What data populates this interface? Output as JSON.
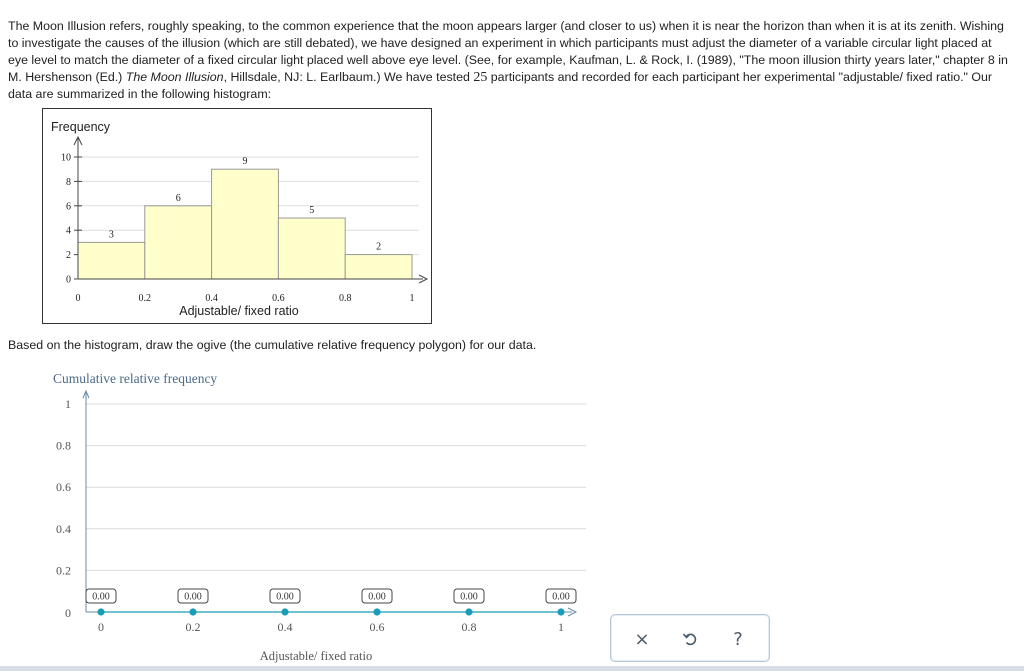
{
  "problem": {
    "part1": "The Moon Illusion refers, roughly speaking, to the common experience that the moon appears larger (and closer to us) when it is near the horizon than when it is at its zenith. Wishing to investigate the causes of the illusion (which are still debated), we have designed an experiment in which participants must adjust the diameter of a variable circular light placed at eye level to match the diameter of a fixed circular light placed well above eye level. (See, for example, Kaufman, L. & Rock, I. (1989), \"The moon illusion thirty years later,\" chapter 8 in M. Hershenson (Ed.) ",
    "book_title": "The Moon Illusion",
    "part2": ", Hillsdale, NJ: L. Earlbaum.) We have tested ",
    "count": "25",
    "part3": " participants and recorded for each participant her experimental \"adjustable/ fixed ratio.\" Our data are summarized in the following histogram:"
  },
  "histogram": {
    "type": "bar",
    "ylabel": "Frequency",
    "xlabel": "Adjustable/ fixed ratio",
    "bins": [
      [
        0,
        0.2
      ],
      [
        0.2,
        0.4
      ],
      [
        0.4,
        0.6
      ],
      [
        0.6,
        0.8
      ],
      [
        0.8,
        1.0
      ]
    ],
    "values": [
      3,
      6,
      9,
      5,
      2
    ],
    "value_labels": [
      "3",
      "6",
      "9",
      "5",
      "2"
    ],
    "yticks": [
      "0",
      "2",
      "4",
      "6",
      "8",
      "10"
    ],
    "xticks": [
      "0",
      "0.2",
      "0.4",
      "0.6",
      "0.8",
      "1"
    ],
    "ylim": [
      0,
      10
    ],
    "xlim": [
      0,
      1
    ],
    "bar_color": "#ffffcc",
    "grid": true
  },
  "instruction": "Based on the histogram, draw the ogive (the cumulative relative frequency polygon) for our data.",
  "ogive": {
    "ylabel": "Cumulative relative frequency",
    "xlabel": "Adjustable/ fixed ratio",
    "yticks": [
      "0",
      "0.2",
      "0.4",
      "0.6",
      "0.8",
      "1"
    ],
    "xticks": [
      "0",
      "0.2",
      "0.4",
      "0.6",
      "0.8",
      "1"
    ],
    "points": [
      {
        "x": 0,
        "label": "0.00"
      },
      {
        "x": 0.2,
        "label": "0.00"
      },
      {
        "x": 0.4,
        "label": "0.00"
      },
      {
        "x": 0.6,
        "label": "0.00"
      },
      {
        "x": 0.8,
        "label": "0.00"
      },
      {
        "x": 1,
        "label": "0.00"
      }
    ],
    "point_color": "#1a9cb8"
  },
  "chart_data": [
    {
      "type": "bar",
      "categories": [
        "0-0.2",
        "0.2-0.4",
        "0.4-0.6",
        "0.6-0.8",
        "0.8-1"
      ],
      "values": [
        3,
        6,
        9,
        5,
        2
      ],
      "xlabel": "Adjustable/ fixed ratio",
      "ylabel": "Frequency",
      "ylim": [
        0,
        10
      ]
    },
    {
      "type": "line",
      "x": [
        0,
        0.2,
        0.4,
        0.6,
        0.8,
        1
      ],
      "values": [
        0,
        0,
        0,
        0,
        0,
        0
      ],
      "xlabel": "Adjustable/ fixed ratio",
      "ylabel": "Cumulative relative frequency",
      "ylim": [
        0,
        1
      ]
    }
  ],
  "toolbar": {
    "close": "×",
    "undo_icon": "undo-icon",
    "help": "?"
  }
}
